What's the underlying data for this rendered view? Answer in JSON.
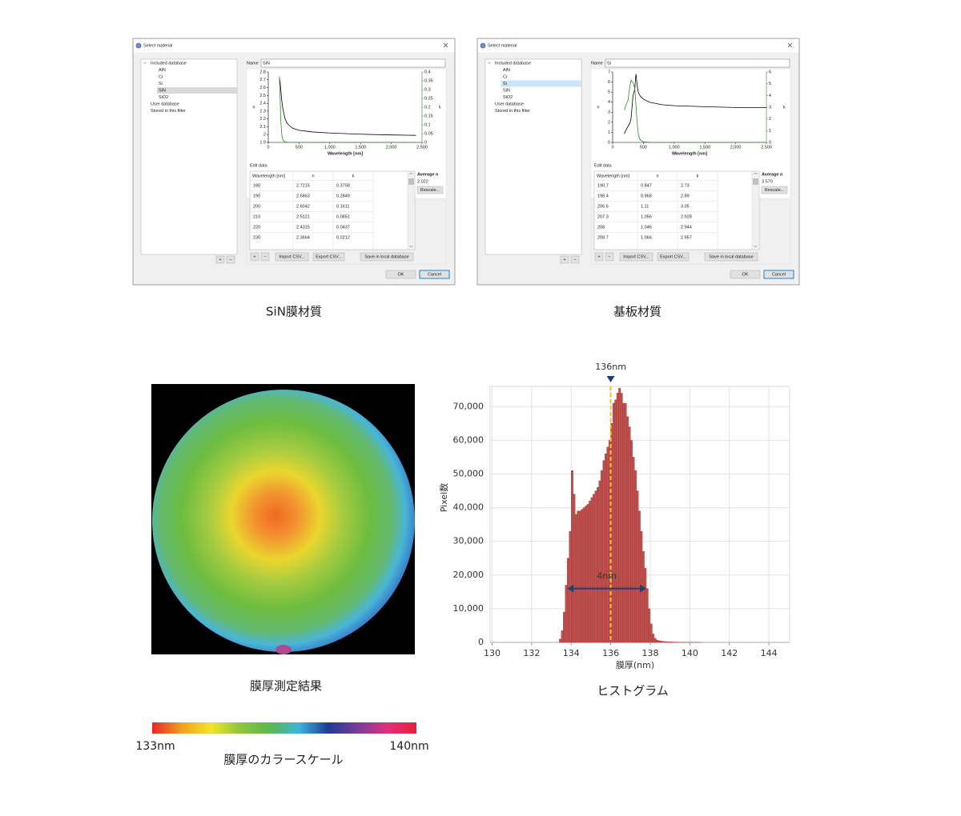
{
  "dialogs": [
    {
      "title": "Select material",
      "selection_color": "#d9d9d9",
      "tree": {
        "root": "Included database",
        "children": [
          "AlN",
          "Cr",
          "Si",
          "SiN",
          "SiO2"
        ],
        "selected": 3,
        "others": [
          "User database",
          "Stored in this filter"
        ]
      },
      "name_label": "Name",
      "name": "SiN",
      "plot": {
        "ylabel": "n",
        "y2label": "k",
        "xlabel": "Wavelength [nm]",
        "xlim": [
          0,
          2500
        ],
        "xticks": [
          0,
          500,
          {
            "value": 1000,
            "label": "1,000"
          },
          {
            "value": 1500,
            "label": "1,500"
          },
          {
            "value": 2000,
            "label": "2,000"
          },
          {
            "value": 2500,
            "label": "2,500"
          }
        ],
        "ylim": [
          1.9,
          2.8
        ],
        "yticks": [
          1.9,
          2,
          2.1,
          2.2,
          2.3,
          2.4,
          2.5,
          2.6,
          2.7,
          2.8
        ],
        "y2lim": [
          0,
          0.4
        ],
        "y2ticks": [
          0,
          0.05,
          0.1,
          0.15,
          0.2,
          0.25,
          0.3,
          0.35,
          0.4
        ],
        "curves": [
          {
            "axis": "y",
            "color": "#000000",
            "x": [
              180,
              190,
              200,
              210,
              220,
              230,
              250,
              270,
              300,
              350,
              400,
              500,
              700,
              1000,
              1500,
              2000,
              2400
            ],
            "values": [
              2.7215,
              2.6863,
              2.6042,
              2.5121,
              2.4315,
              2.3664,
              2.28,
              2.21,
              2.15,
              2.11,
              2.08,
              2.055,
              2.035,
              2.02,
              2.005,
              1.995,
              1.99
            ]
          },
          {
            "axis": "y2",
            "color": "#2e8b2e",
            "x": [
              180,
              190,
              200,
              210,
              220,
              230,
              250,
              270,
              300,
              400,
              1000,
              2400
            ],
            "values": [
              0.3758,
              0.2849,
              0.1611,
              0.0851,
              0.0437,
              0.0212,
              0.008,
              0.003,
              0.001,
              0,
              0,
              0
            ]
          }
        ]
      },
      "edit_label": "Edit data",
      "table": {
        "header": [
          "Wavelength [nm]",
          "n",
          "k"
        ],
        "rows": [
          [
            "180",
            "2.7215",
            "0.3758"
          ],
          [
            "190",
            "2.6863",
            "0.2849"
          ],
          [
            "200",
            "2.6042",
            "0.1611"
          ],
          [
            "210",
            "2.5121",
            "0.0851"
          ],
          [
            "220",
            "2.4315",
            "0.0437"
          ],
          [
            "230",
            "2.3664",
            "0.0212"
          ]
        ]
      },
      "average_label": "Average n",
      "average": "2.022",
      "rescale": "Rescale...",
      "buttons": {
        "add": "+",
        "remove": "−",
        "import": "Import CSV...",
        "export": "Export CSV...",
        "save": "Save in local database",
        "ok": "OK",
        "cancel": "Cancel"
      }
    },
    {
      "title": "Select material",
      "selection_color": "#cce4f7",
      "tree": {
        "root": "Included database",
        "children": [
          "AlN",
          "Cr",
          "Si",
          "SiN",
          "SiO2"
        ],
        "selected": 2,
        "others": [
          "User database",
          "Stored in this filter"
        ]
      },
      "name_label": "Name",
      "name": "Si",
      "plot": {
        "ylabel": "n",
        "y2label": "k",
        "xlabel": "Wavelength [nm]",
        "xlim": [
          0,
          2500
        ],
        "xticks": [
          0,
          500,
          {
            "value": 1000,
            "label": "1,000"
          },
          {
            "value": 1500,
            "label": "1,500"
          },
          {
            "value": 2000,
            "label": "2,000"
          },
          {
            "value": 2500,
            "label": "2,500"
          }
        ],
        "ylim": [
          0,
          7
        ],
        "yticks": [
          0,
          1,
          2,
          3,
          4,
          5,
          6,
          7
        ],
        "y2lim": [
          0,
          6
        ],
        "y2ticks": [
          0,
          1,
          2,
          3,
          4,
          5,
          6
        ],
        "curves": [
          {
            "axis": "y",
            "color": "#000000",
            "x": [
              190.7,
              198.4,
              206.6,
              250,
              280,
              300,
              330,
              360,
              370,
              380,
              400,
              420,
              450,
              500,
              600,
              800,
              1000,
              1500,
              1800,
              2000,
              2500
            ],
            "values": [
              0.847,
              0.968,
              1.11,
              1.6,
              1.9,
              2.4,
              4.6,
              5.3,
              6.2,
              6.8,
              5.6,
              4.9,
              4.6,
              4.3,
              4.0,
              3.75,
              3.65,
              3.55,
              3.5,
              3.47,
              3.45
            ]
          },
          {
            "axis": "y2",
            "color": "#2e8b2e",
            "x": [
              190.7,
              198.4,
              206.6,
              250,
              280,
              300,
              340,
              360,
              380,
              400,
              420,
              450,
              500,
              600,
              1000,
              2500
            ],
            "values": [
              2.73,
              2.89,
              3.05,
              3.6,
              4.8,
              5.3,
              5.0,
              4.6,
              3.1,
              1.6,
              0.6,
              0.2,
              0.05,
              0.01,
              0,
              0
            ]
          }
        ]
      },
      "edit_label": "Edit data",
      "table": {
        "header": [
          "Wavelength [nm]",
          "n",
          "k"
        ],
        "rows": [
          [
            "190.7",
            "0.847",
            "2.73"
          ],
          [
            "198.4",
            "0.968",
            "2.89"
          ],
          [
            "206.6",
            "1.11",
            "3.05"
          ],
          [
            "207.3",
            "1.056",
            "2.928"
          ],
          [
            "208",
            "1.046",
            "2.944"
          ],
          [
            "208.7",
            "1.066",
            "2.957"
          ]
        ]
      },
      "average_label": "Average n",
      "average": "3.570",
      "rescale": "Rescale...",
      "buttons": {
        "add": "+",
        "remove": "−",
        "import": "Import CSV...",
        "export": "Export CSV...",
        "save": "Save in local database",
        "ok": "OK",
        "cancel": "Cancel"
      }
    }
  ],
  "captions": {
    "film": "SiN膜材質",
    "substrate": "基板材質",
    "map": "膜厚測定結果",
    "histogram": "ヒストグラム"
  },
  "color_scale": {
    "title": "膜厚のカラースケール",
    "min": {
      "value": 133,
      "label": "133nm"
    },
    "max": {
      "value": 140,
      "label": "140nm"
    },
    "colors": [
      "#e8262a",
      "#f0a020",
      "#f0e628",
      "#8cc63f",
      "#5cb848",
      "#3cb4dc",
      "#1e3c96",
      "#7a3c9c",
      "#e0307c",
      "#e81e3c"
    ]
  },
  "chart_data": {
    "type": "histogram",
    "xlabel": "膜厚(nm)",
    "ylabel": "Pixel数",
    "color": "#c0504d",
    "edge_color": "#9c3a38",
    "grid": true,
    "bins": [
      133.4,
      133.5,
      133.6,
      133.7,
      133.8,
      133.9,
      134,
      134.1,
      134.2,
      134.3,
      134.4,
      134.5,
      134.6,
      134.7,
      134.8,
      134.9,
      135,
      135.1,
      135.2,
      135.3,
      135.4,
      135.5,
      135.6,
      135.7,
      135.8,
      135.9,
      136,
      136.1,
      136.2,
      136.3,
      136.4,
      136.5,
      136.6,
      136.7,
      136.8,
      136.9,
      137,
      137.1,
      137.2,
      137.3,
      137.4,
      137.5,
      137.6,
      137.7,
      137.8,
      137.9,
      138,
      138.1,
      138.2,
      138.3,
      138.4,
      138.5,
      138.6,
      138.7,
      138.8,
      138.9,
      139,
      139.1,
      139.2,
      139.3,
      139.4,
      139.5,
      139.6,
      139.7,
      139.8,
      139.9,
      140,
      140.1,
      140.2,
      140.3,
      140.4,
      140.5,
      140.6
    ],
    "values": [
      1000,
      3500,
      9000,
      17000,
      25000,
      33000,
      51000,
      44000,
      38000,
      39000,
      39000,
      39500,
      40000,
      40500,
      41000,
      42000,
      43000,
      44000,
      45000,
      46000,
      48000,
      51000,
      54000,
      56000,
      58000,
      60000,
      65000,
      71000,
      72000,
      74000,
      75500,
      74000,
      71000,
      71000,
      67000,
      64000,
      60000,
      55000,
      51000,
      45000,
      39000,
      33000,
      27000,
      22000,
      16000,
      10000,
      5500,
      2500,
      1200,
      700,
      500,
      400,
      300,
      250,
      200,
      150,
      150,
      120,
      100,
      100,
      80,
      80,
      60,
      60,
      50,
      50,
      40,
      40,
      30,
      30,
      20,
      20
    ],
    "xlim": [
      129.9,
      145.05
    ],
    "xticks": [
      130,
      132,
      134,
      136,
      138,
      140,
      142,
      144
    ],
    "ylim": [
      0,
      76000
    ],
    "yticks": [
      0,
      {
        "value": 10000,
        "label": "10,000"
      },
      {
        "value": 20000,
        "label": "20,000"
      },
      {
        "value": 30000,
        "label": "30,000"
      },
      {
        "value": 40000,
        "label": "40,000"
      },
      {
        "value": 50000,
        "label": "50,000"
      },
      {
        "value": 60000,
        "label": "60,000"
      },
      {
        "value": 70000,
        "label": "70,000"
      }
    ],
    "annotations": [
      {
        "text": "136nm",
        "x": 136,
        "color": "#1f3f7a",
        "line_color": "#f2c811"
      },
      {
        "text": "4nm",
        "x": [
          133.8,
          137.8
        ],
        "y": 16000,
        "color": "#1f3f7a"
      }
    ]
  }
}
